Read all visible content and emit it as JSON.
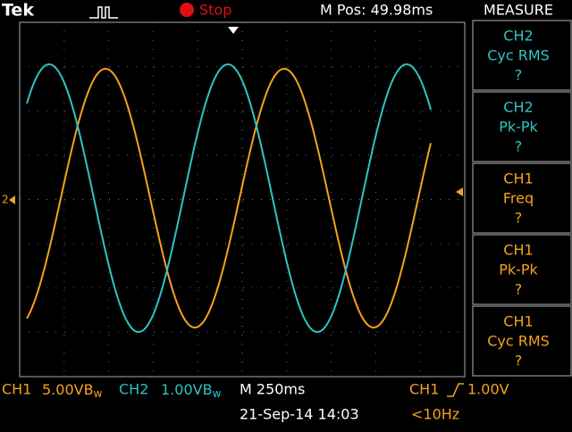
{
  "header": {
    "brand": "Tek",
    "status": "Stop",
    "position": "M Pos: 49.98ms",
    "menu_title": "MEASURE"
  },
  "measurements": [
    {
      "channel": "CH2",
      "label": "Cyc RMS",
      "value": "?"
    },
    {
      "channel": "CH2",
      "label": "Pk-Pk",
      "value": "?"
    },
    {
      "channel": "CH1",
      "label": "Freq",
      "value": "?"
    },
    {
      "channel": "CH1",
      "label": "Pk-Pk",
      "value": "?"
    },
    {
      "channel": "CH1",
      "label": "Cyc RMS",
      "value": "?"
    }
  ],
  "footer": {
    "ch1": "CH1",
    "ch1_scale": "5.00V",
    "ch2": "CH2",
    "ch2_scale": "1.00V",
    "bandwidth": "B",
    "bandwidth_sub": "w",
    "timebase": "M 250ms",
    "trigger_source": "CH1",
    "trigger_level": "1.00V",
    "datetime": "21-Sep-14 14:03",
    "trigger_freq": "<10Hz"
  },
  "markers": {
    "ch2": "2"
  }
}
